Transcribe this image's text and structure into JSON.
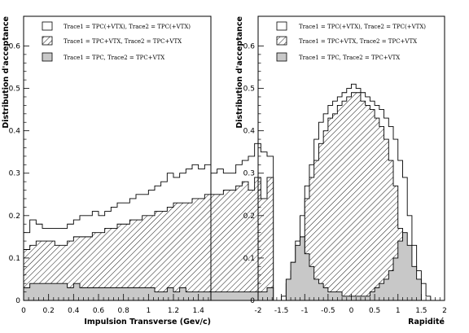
{
  "chart_data": [
    {
      "type": "area",
      "xlabel": "Impulsion Transverse (Gev/c)",
      "ylabel": "Distribution d'acceptance",
      "xlim": [
        0,
        1.5
      ],
      "ylim": [
        0,
        0.67
      ],
      "x_ticks": [
        "0",
        "0.2",
        "0.4",
        "0.6",
        "0.8",
        "1",
        "1.2",
        "1.4"
      ],
      "x_tick_values": [
        0,
        0.2,
        0.4,
        0.6,
        0.8,
        1.0,
        1.2,
        1.4
      ],
      "y_ticks": [
        "0",
        "0.1",
        "0.2",
        "0.3",
        "0.4",
        "0.5",
        "0.6"
      ],
      "y_tick_values": [
        0,
        0.1,
        0.2,
        0.3,
        0.4,
        0.5,
        0.6
      ],
      "bin_edges_start": 0,
      "bin_width": 0.05,
      "legend": [
        {
          "label": "Trace1 = TPC(+VTX), Trace2 = TPC(+VTX)",
          "style": "open"
        },
        {
          "label": "Trace1 = TPC+VTX, Trace2 = TPC+VTX",
          "style": "hatched"
        },
        {
          "label": "Trace1 = TPC, Trace2 = TPC+VTX",
          "style": "gray"
        }
      ],
      "series": [
        {
          "name": "Trace1 = TPC(+VTX), Trace2 = TPC(+VTX)",
          "style": "open",
          "values": [
            0.16,
            0.19,
            0.18,
            0.17,
            0.17,
            0.17,
            0.17,
            0.18,
            0.19,
            0.2,
            0.2,
            0.21,
            0.2,
            0.21,
            0.22,
            0.23,
            0.23,
            0.24,
            0.25,
            0.25,
            0.26,
            0.27,
            0.28,
            0.3,
            0.29,
            0.3,
            0.31,
            0.32,
            0.31,
            0.32,
            0.3,
            0.31,
            0.3,
            0.3,
            0.32,
            0.33,
            0.34,
            0.37,
            0.35,
            0.34
          ]
        },
        {
          "name": "Trace1 = TPC+VTX, Trace2 = TPC+VTX",
          "style": "hatched",
          "values": [
            0.12,
            0.13,
            0.14,
            0.14,
            0.14,
            0.13,
            0.13,
            0.14,
            0.15,
            0.15,
            0.15,
            0.16,
            0.16,
            0.17,
            0.17,
            0.18,
            0.18,
            0.19,
            0.19,
            0.2,
            0.2,
            0.21,
            0.21,
            0.22,
            0.23,
            0.23,
            0.23,
            0.24,
            0.24,
            0.25,
            0.25,
            0.25,
            0.26,
            0.26,
            0.27,
            0.28,
            0.26,
            0.29,
            0.24,
            0.29
          ]
        },
        {
          "name": "Trace1 = TPC, Trace2 = TPC+VTX",
          "style": "gray",
          "values": [
            0.03,
            0.04,
            0.04,
            0.04,
            0.04,
            0.04,
            0.04,
            0.03,
            0.04,
            0.03,
            0.03,
            0.03,
            0.03,
            0.03,
            0.03,
            0.03,
            0.03,
            0.03,
            0.03,
            0.03,
            0.03,
            0.02,
            0.02,
            0.03,
            0.02,
            0.03,
            0.02,
            0.02,
            0.02,
            0.02,
            0.02,
            0.02,
            0.02,
            0.02,
            0.02,
            0.02,
            0.02,
            0.02,
            0.02,
            0.03
          ]
        }
      ]
    },
    {
      "type": "area",
      "xlabel": "Rapidité",
      "ylabel": "Distribution d'acceptance",
      "xlim": [
        -2,
        2
      ],
      "ylim": [
        0,
        0.67
      ],
      "x_ticks": [
        "-2",
        "-1.5",
        "-1",
        "-0.5",
        "0",
        "0.5",
        "1",
        "1.5",
        "2"
      ],
      "x_tick_values": [
        -2,
        -1.5,
        -1,
        -0.5,
        0,
        0.5,
        1,
        1.5,
        2
      ],
      "y_ticks": [
        "0",
        "0.1",
        "0.2",
        "0.3",
        "0.4",
        "0.5",
        "0.6"
      ],
      "y_tick_values": [
        0,
        0.1,
        0.2,
        0.3,
        0.4,
        0.5,
        0.6
      ],
      "bin_edges_start": -2,
      "bin_width": 0.1,
      "legend": [
        {
          "label": "Trace1 = TPC(+VTX), Trace2 = TPC(+VTX)",
          "style": "open"
        },
        {
          "label": "Trace1 = TPC+VTX, Trace2 = TPC+VTX",
          "style": "hatched"
        },
        {
          "label": "Trace1 = TPC, Trace2 = TPC+VTX",
          "style": "gray"
        }
      ],
      "series": [
        {
          "name": "Trace1 = TPC(+VTX), Trace2 = TPC(+VTX)",
          "style": "open",
          "values": [
            0,
            0,
            0,
            0,
            0,
            0.01,
            0.04,
            0.07,
            0.14,
            0.2,
            0.27,
            0.32,
            0.38,
            0.42,
            0.44,
            0.46,
            0.47,
            0.48,
            0.49,
            0.5,
            0.51,
            0.5,
            0.49,
            0.48,
            0.47,
            0.46,
            0.45,
            0.43,
            0.41,
            0.38,
            0.33,
            0.29,
            0.2,
            0.13,
            0.07,
            0.04,
            0.01,
            0,
            0,
            0
          ]
        },
        {
          "name": "Trace1 = TPC+VTX, Trace2 = TPC+VTX",
          "style": "hatched",
          "values": [
            0,
            0,
            0,
            0,
            0,
            0,
            0,
            0,
            0,
            0,
            0.24,
            0.29,
            0.33,
            0.37,
            0.4,
            0.43,
            0.44,
            0.46,
            0.47,
            0.48,
            0.49,
            0.49,
            0.47,
            0.46,
            0.45,
            0.43,
            0.41,
            0.38,
            0.33,
            0.27,
            0.17,
            0,
            0,
            0,
            0,
            0,
            0,
            0,
            0,
            0
          ]
        },
        {
          "name": "Trace1 = TPC, Trace2 = TPC+VTX",
          "style": "gray",
          "values": [
            0,
            0,
            0,
            0,
            0,
            0,
            0.05,
            0.09,
            0.13,
            0.15,
            0.11,
            0.08,
            0.05,
            0.04,
            0.03,
            0.02,
            0.02,
            0.02,
            0.01,
            0.01,
            0.01,
            0.01,
            0.01,
            0.01,
            0.02,
            0.03,
            0.04,
            0.05,
            0.07,
            0.1,
            0.14,
            0.16,
            0.13,
            0.08,
            0.05,
            0,
            0,
            0,
            0,
            0
          ]
        }
      ]
    }
  ]
}
